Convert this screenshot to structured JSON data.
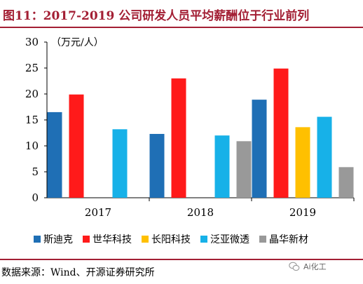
{
  "figure_title": "图11：2017-2019 公司研发人员平均薪酬位于行业前列",
  "source_note": "数据来源：Wind、开源证券研究所",
  "watermark_text": "Ai化工",
  "colors": {
    "title": "#a31f34",
    "series": [
      "#1f6fb5",
      "#ff1a1a",
      "#ffc000",
      "#17b1e8",
      "#999999"
    ]
  },
  "chart_data": {
    "type": "bar",
    "unit_label": "（万元/人）",
    "categories": [
      "2017",
      "2018",
      "2019"
    ],
    "ylim": [
      0,
      30
    ],
    "yticks": [
      "0",
      "5",
      "10",
      "15",
      "20",
      "25",
      "30"
    ],
    "grid": false,
    "legend_position": "bottom",
    "series": [
      {
        "name": "斯迪克",
        "values": [
          16.5,
          12.3,
          18.9
        ]
      },
      {
        "name": "世华科技",
        "values": [
          19.9,
          23.0,
          24.9
        ]
      },
      {
        "name": "长阳科技",
        "values": [
          null,
          null,
          13.6
        ]
      },
      {
        "name": "泛亚微透",
        "values": [
          13.2,
          12.0,
          15.6
        ]
      },
      {
        "name": "晶华新材",
        "values": [
          null,
          10.9,
          5.9
        ]
      }
    ]
  }
}
